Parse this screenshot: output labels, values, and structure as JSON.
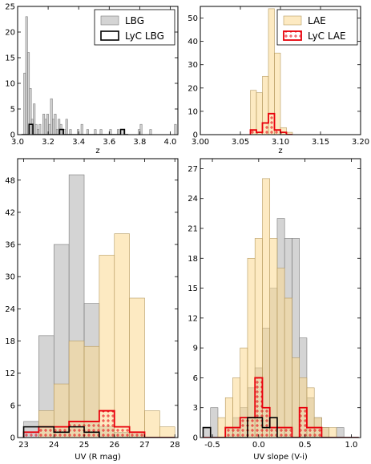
{
  "chart_data": [
    {
      "panel": "top-left",
      "type": "bar",
      "xlabel": "z",
      "ylabel": "",
      "xlim": [
        3.0,
        4.05
      ],
      "ylim": [
        0,
        25
      ],
      "xticks": [
        "3.0",
        "3.2",
        "3.4",
        "3.6",
        "3.8",
        "4.0"
      ],
      "yticks": [
        "0",
        "5",
        "10",
        "15",
        "20",
        "25"
      ],
      "legend_position": "top-right",
      "series": [
        {
          "name": "LBG",
          "style": "gray-filled",
          "color": "#b0b0b0",
          "bin_start": 3.04,
          "bin_width": 0.0125,
          "counts": [
            12,
            23,
            16,
            9,
            3,
            6,
            2,
            1,
            2,
            0,
            4,
            3,
            4,
            2,
            7,
            3,
            4,
            1,
            3,
            2,
            1,
            1,
            3,
            0,
            1,
            0,
            0,
            0,
            1,
            0,
            2,
            0,
            0,
            1,
            0,
            0,
            0,
            1,
            0,
            0,
            1,
            0,
            0,
            0,
            0,
            1,
            0,
            0,
            0,
            1,
            0,
            0,
            1,
            0,
            0,
            0,
            0,
            0,
            0,
            0,
            1,
            2,
            0,
            0,
            0,
            0,
            1,
            0,
            0,
            0,
            0,
            0,
            0,
            0,
            0,
            0,
            0,
            0,
            0,
            2
          ]
        },
        {
          "name": "LyC LBG",
          "style": "black-step",
          "color": "#000000",
          "steps": [
            {
              "x0": 3.025,
              "x1": 3.075,
              "count": 0
            },
            {
              "x0": 3.075,
              "x1": 3.1,
              "count": 2
            },
            {
              "x0": 3.1,
              "x1": 3.275,
              "count": 0
            },
            {
              "x0": 3.275,
              "x1": 3.3,
              "count": 1
            },
            {
              "x0": 3.3,
              "x1": 3.675,
              "count": 0
            },
            {
              "x0": 3.675,
              "x1": 3.7,
              "count": 1
            },
            {
              "x0": 3.7,
              "x1": 3.725,
              "count": 0
            }
          ]
        }
      ]
    },
    {
      "panel": "top-right",
      "type": "bar",
      "xlabel": "z",
      "ylabel": "",
      "xlim": [
        3.0,
        3.2
      ],
      "ylim": [
        0,
        55
      ],
      "xticks": [
        "3.00",
        "3.05",
        "3.10",
        "3.15",
        "3.20"
      ],
      "yticks": [
        "0",
        "10",
        "20",
        "30",
        "40",
        "50"
      ],
      "legend_position": "top-right",
      "series": [
        {
          "name": "LAE",
          "style": "orange-filled",
          "color": "#fbd98f",
          "bin_start": 3.0625,
          "bin_width": 0.0075,
          "counts": [
            19,
            18,
            25,
            54,
            35,
            3,
            1
          ]
        },
        {
          "name": "LyC LAE",
          "style": "red-step-hatched",
          "color": "#e8000b",
          "bin_start": 3.0625,
          "bin_width": 0.0075,
          "counts": [
            2,
            1,
            5,
            9,
            2,
            1,
            0
          ]
        }
      ]
    },
    {
      "panel": "bottom-left",
      "type": "bar",
      "xlabel": "UV (R mag)",
      "ylabel": "",
      "xlim": [
        22.8,
        28.1
      ],
      "ylim": [
        0,
        52
      ],
      "xticks": [
        "23",
        "24",
        "25",
        "26",
        "27",
        "28"
      ],
      "yticks": [
        "0",
        "6",
        "12",
        "18",
        "24",
        "30",
        "36",
        "42",
        "48"
      ],
      "series": [
        {
          "name": "LBG",
          "style": "gray-filled",
          "color": "#b0b0b0",
          "bin_start": 23.0,
          "bin_width": 0.5,
          "counts": [
            3,
            19,
            36,
            49,
            25,
            2,
            1,
            1
          ]
        },
        {
          "name": "LAE",
          "style": "orange-filled",
          "color": "#fbd98f",
          "bin_start": 23.0,
          "bin_width": 0.5,
          "counts": [
            0,
            5,
            10,
            18,
            17,
            34,
            38,
            26,
            5,
            2
          ]
        },
        {
          "name": "LyC LAE",
          "style": "red-step-hatched",
          "color": "#e8000b",
          "bin_start": 23.0,
          "bin_width": 0.5,
          "counts": [
            1,
            2,
            2,
            3,
            3,
            5,
            2,
            1,
            0,
            0
          ]
        },
        {
          "name": "LyC LBG",
          "style": "black-step",
          "color": "#000000",
          "bin_start": 23.0,
          "bin_width": 0.5,
          "counts": [
            2,
            2,
            1,
            2,
            1,
            0,
            0,
            0,
            0,
            0
          ]
        }
      ]
    },
    {
      "panel": "bottom-right",
      "type": "bar",
      "xlabel": "UV slope (V-i)",
      "ylabel": "",
      "xlim": [
        -0.63,
        1.1
      ],
      "ylim": [
        0,
        28
      ],
      "xticks": [
        "-0.5",
        "0.0",
        "0.5",
        "1.0"
      ],
      "yticks": [
        "0",
        "3",
        "6",
        "9",
        "12",
        "15",
        "18",
        "21",
        "24",
        "27"
      ],
      "series": [
        {
          "name": "LBG",
          "style": "gray-filled",
          "color": "#b0b0b0",
          "bin_start": -0.6,
          "bin_width": 0.08,
          "counts": [
            1,
            3,
            0,
            1,
            2,
            3,
            5,
            7,
            11,
            15,
            22,
            20,
            20,
            10,
            4,
            2,
            1,
            0,
            1,
            0,
            0
          ]
        },
        {
          "name": "LAE",
          "style": "orange-filled",
          "color": "#fbd98f",
          "bin_start": -0.6,
          "bin_width": 0.08,
          "counts": [
            0,
            0,
            2,
            4,
            6,
            9,
            18,
            20,
            26,
            20,
            17,
            14,
            8,
            6,
            5,
            2,
            1,
            1,
            0,
            0,
            0
          ]
        },
        {
          "name": "LyC LAE",
          "style": "red-step-hatched",
          "color": "#e8000b",
          "bin_start": -0.6,
          "bin_width": 0.08,
          "counts": [
            0,
            0,
            0,
            1,
            1,
            2,
            2,
            6,
            3,
            1,
            1,
            1,
            0,
            3,
            1,
            1,
            0,
            0,
            0,
            0,
            0
          ]
        },
        {
          "name": "LyC LBG",
          "style": "black-step",
          "color": "#000000",
          "bin_start": -0.6,
          "bin_width": 0.08,
          "counts": [
            1,
            0,
            0,
            0,
            0,
            0,
            2,
            2,
            1,
            2,
            0,
            0,
            0,
            0,
            0,
            0,
            0,
            0,
            0,
            0,
            0
          ]
        }
      ]
    }
  ]
}
